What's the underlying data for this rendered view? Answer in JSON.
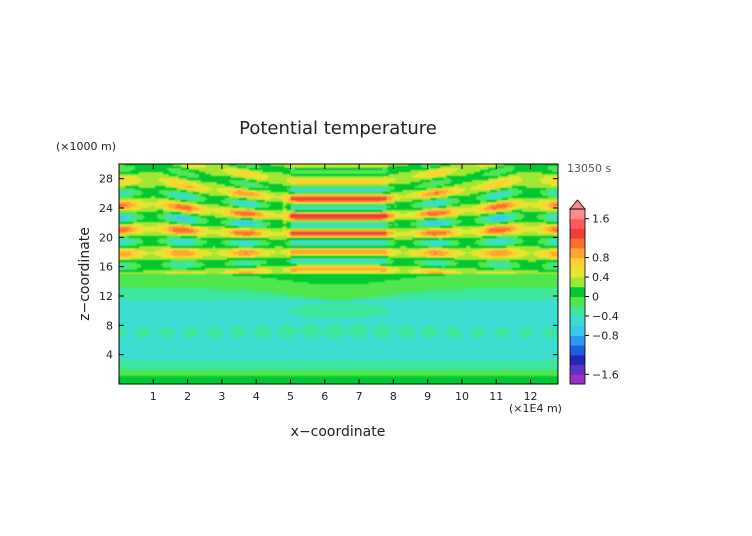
{
  "chart_data": {
    "type": "heatmap",
    "title": "Potential temperature",
    "xlabel": "x−coordinate",
    "ylabel": "z−coordinate",
    "x_unit": "(×1E4 m)",
    "y_unit": "(×1000 m)",
    "time_label": "13050 s",
    "xlim": [
      0,
      12.8
    ],
    "ylim": [
      0,
      30
    ],
    "x_ticks": [
      1,
      2,
      3,
      4,
      5,
      6,
      7,
      8,
      9,
      10,
      11,
      12
    ],
    "y_ticks": [
      4,
      8,
      12,
      16,
      20,
      24,
      28
    ],
    "colorbar": {
      "levels": [
        -1.8,
        -1.6,
        -1.4,
        -1.2,
        -1.0,
        -0.8,
        -0.6,
        -0.4,
        -0.2,
        0,
        0.2,
        0.4,
        0.6,
        0.8,
        1.0,
        1.2,
        1.4,
        1.6,
        1.8
      ],
      "tick_values": [
        1.6,
        0.8,
        0.4,
        0,
        -0.4,
        -0.8,
        -1.6
      ],
      "tick_labels": [
        "1.6",
        "0.8",
        "0.4",
        "0",
        "−0.4",
        "−0.8",
        "−1.6"
      ],
      "colors": [
        "#9a30c8",
        "#5a34c0",
        "#2626b4",
        "#1e5ce0",
        "#2a9af0",
        "#3cc8f0",
        "#3cdcd0",
        "#3ce69c",
        "#50e650",
        "#00c830",
        "#a0e632",
        "#e6e632",
        "#ffd232",
        "#ffa532",
        "#ff6e32",
        "#f03c3c",
        "#ff5a5a",
        "#ff8c8c"
      ]
    },
    "description_bands": [
      {
        "z_range": [
          0,
          2
        ],
        "value": 0.1
      },
      {
        "z_range": [
          2,
          4
        ],
        "value": -0.2
      },
      {
        "z_range": [
          4,
          12
        ],
        "value": -0.45
      },
      {
        "z_range": [
          12,
          15
        ],
        "value": -0.15
      },
      {
        "z_range": [
          15,
          28
        ],
        "value": "oscillating, amplitude up to 1.0"
      },
      {
        "z_range": [
          28,
          30
        ],
        "value": "oscillating, amplitude up to 0.5"
      }
    ]
  }
}
